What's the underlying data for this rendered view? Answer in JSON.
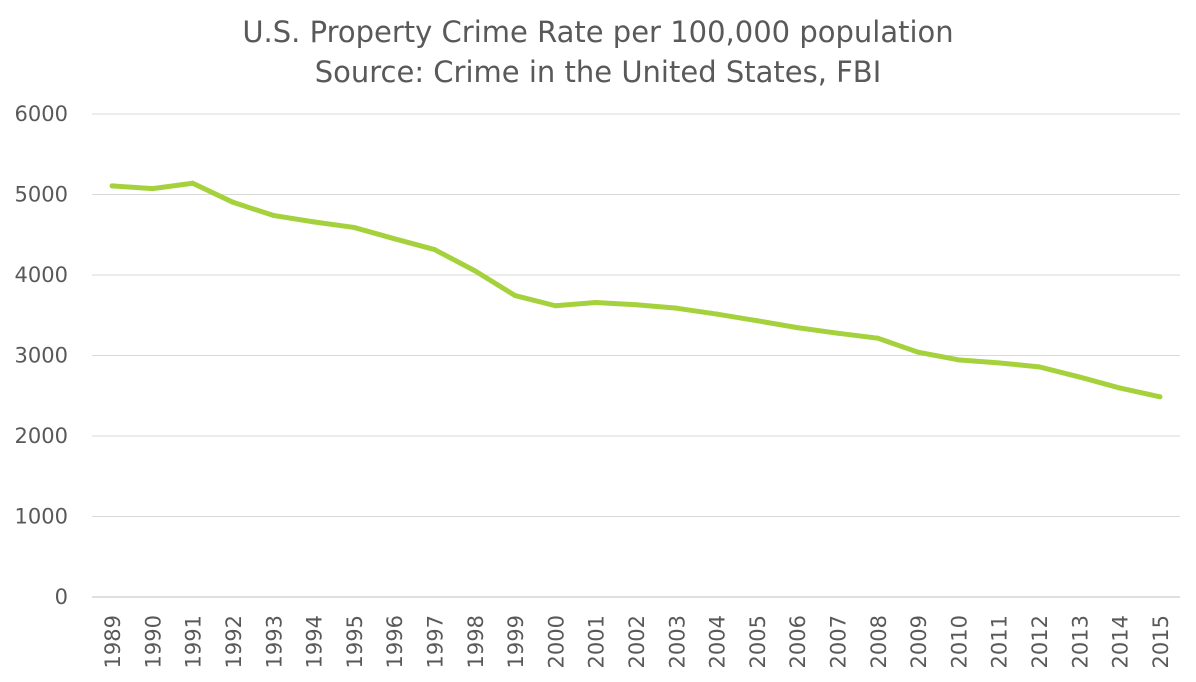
{
  "chart_data": {
    "type": "line",
    "title": "U.S. Property Crime Rate per 100,000 population",
    "subtitle": "Source: Crime in the United States, FBI",
    "xlabel": "",
    "ylabel": "",
    "ylim": [
      0,
      6000
    ],
    "yticks": [
      "0",
      "1000",
      "2000",
      "3000",
      "4000",
      "5000",
      "6000"
    ],
    "grid": true,
    "legend": "none",
    "categories": [
      "1989",
      "1990",
      "1991",
      "1992",
      "1993",
      "1994",
      "1995",
      "1996",
      "1997",
      "1998",
      "1999",
      "2000",
      "2001",
      "2002",
      "2003",
      "2004",
      "2005",
      "2006",
      "2007",
      "2008",
      "2009",
      "2010",
      "2011",
      "2012",
      "2013",
      "2014",
      "2015"
    ],
    "series": [
      {
        "color": "#a5d23c",
        "values": [
          5107,
          5073,
          5140,
          4903,
          4740,
          4660,
          4591,
          4451,
          4316,
          4053,
          3744,
          3618,
          3658,
          3631,
          3588,
          3515,
          3432,
          3346,
          3277,
          3215,
          3041,
          2946,
          2909,
          2859,
          2734,
          2597,
          2487
        ]
      }
    ]
  }
}
